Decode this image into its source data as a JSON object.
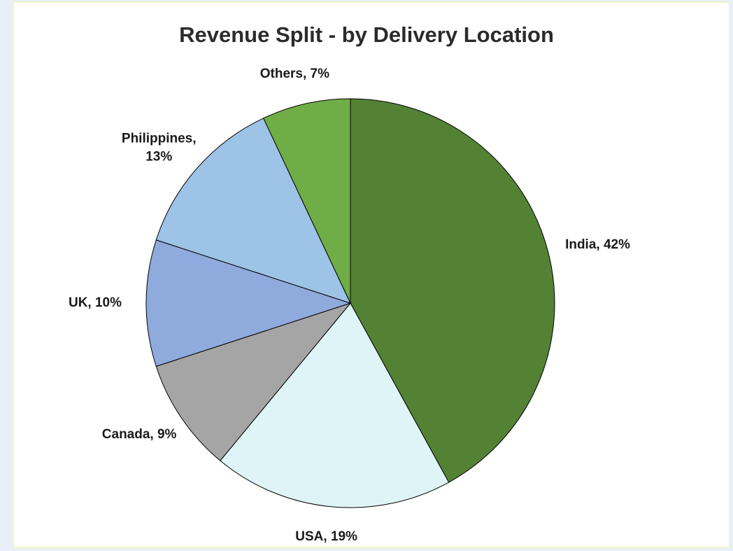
{
  "chart_data": {
    "type": "pie",
    "title": "Revenue Split - by Delivery Location",
    "categories": [
      "India",
      "USA",
      "Canada",
      "UK",
      "Philippines",
      "Others"
    ],
    "values": [
      42,
      19,
      9,
      10,
      13,
      7
    ],
    "value_labels": [
      "India, 42%",
      "USA, 19%",
      "Canada, 9%",
      "UK, 10%",
      "Philippines, 13%",
      "Others, 7%"
    ],
    "colors": [
      "#548235",
      "#dff4f7",
      "#a5a5a5",
      "#8faadc",
      "#9dc3e6",
      "#70ad47"
    ]
  }
}
